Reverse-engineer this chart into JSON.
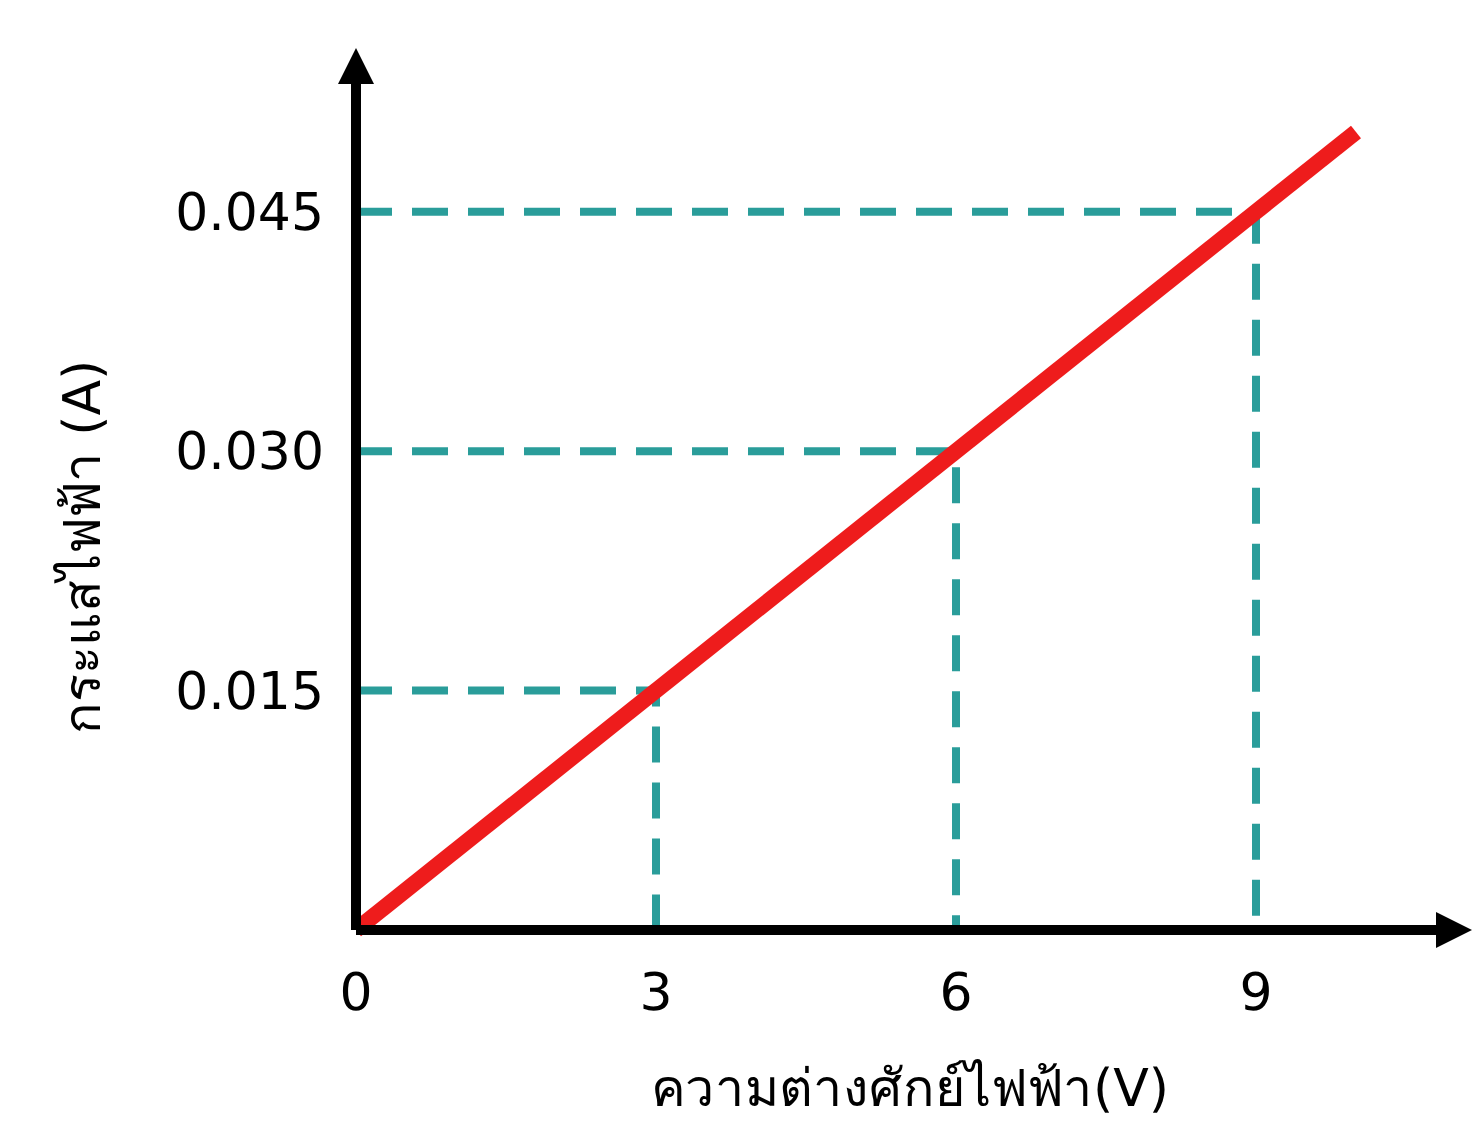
{
  "chart_data": {
    "type": "line",
    "xlabel": "ความต่างศักย์ไฟฟ้า(V)",
    "ylabel": "กระแสไฟฟ้า (A)",
    "xlim": [
      0,
      10.8
    ],
    "ylim": [
      0,
      0.053
    ],
    "xticks": [
      0,
      3,
      6,
      9
    ],
    "yticks": [
      0.015,
      {
        "value": 0.03,
        "label": "0.030"
      },
      0.045
    ],
    "grid": false,
    "series": [
      {
        "color": "#ee1c1c",
        "x": [
          0,
          10
        ],
        "values": [
          0,
          0.05
        ],
        "line_style": "solid"
      },
      {
        "color": "#2a9d9a",
        "x": [
          0,
          3,
          3
        ],
        "values": [
          0.015,
          0.015,
          0
        ],
        "line_style": "dashed"
      },
      {
        "color": "#2a9d9a",
        "x": [
          0,
          6,
          6
        ],
        "values": [
          0.03,
          0.03,
          0
        ],
        "line_style": "dashed"
      },
      {
        "color": "#2a9d9a",
        "x": [
          0,
          9,
          9
        ],
        "values": [
          0.045,
          0.045,
          0
        ],
        "line_style": "dashed"
      }
    ]
  }
}
